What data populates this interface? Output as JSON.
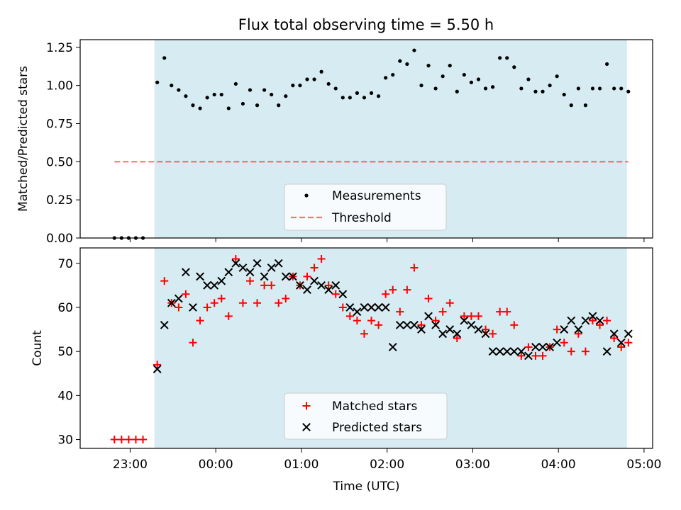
{
  "title": "Flux total observing time = 5.50 h",
  "colors": {
    "shade": "#add8e6",
    "threshold": "#ff0000",
    "matched": "#ff0000",
    "predicted": "#000000",
    "measurements": "#000000"
  },
  "chart_data": [
    {
      "type": "scatter",
      "panel": "top",
      "ylabel": "Matched/Predicted stars",
      "xlabel": "",
      "ylim": [
        0,
        1.3
      ],
      "yticks": [
        "0.00",
        "0.25",
        "0.50",
        "0.75",
        "1.00",
        "1.25"
      ],
      "legend_position": "lower center",
      "shaded_interval": [
        "23:17",
        "04:48"
      ],
      "series": [
        {
          "name": "Measurements",
          "x": [
            "22:49",
            "22:54",
            "22:59",
            "23:04",
            "23:09",
            "23:19",
            "23:24",
            "23:29",
            "23:34",
            "23:39",
            "23:44",
            "23:49",
            "23:54",
            "23:59",
            "00:04",
            "00:09",
            "00:14",
            "00:19",
            "00:24",
            "00:29",
            "00:34",
            "00:39",
            "00:44",
            "00:49",
            "00:54",
            "00:59",
            "01:04",
            "01:09",
            "01:14",
            "01:19",
            "01:24",
            "01:29",
            "01:34",
            "01:39",
            "01:44",
            "01:49",
            "01:54",
            "01:59",
            "02:04",
            "02:09",
            "02:14",
            "02:19",
            "02:24",
            "02:29",
            "02:34",
            "02:39",
            "02:44",
            "02:49",
            "02:54",
            "02:59",
            "03:04",
            "03:09",
            "03:14",
            "03:19",
            "03:24",
            "03:29",
            "03:34",
            "03:39",
            "03:44",
            "03:49",
            "03:54",
            "03:59",
            "04:04",
            "04:09",
            "04:14",
            "04:19",
            "04:24",
            "04:29",
            "04:34",
            "04:39",
            "04:44",
            "04:49"
          ],
          "y": [
            0,
            0,
            0,
            0,
            0,
            1.02,
            1.18,
            1.0,
            0.97,
            0.93,
            0.87,
            0.85,
            0.92,
            0.94,
            0.94,
            0.85,
            1.01,
            0.88,
            0.97,
            0.87,
            0.97,
            0.94,
            0.87,
            0.93,
            1.0,
            1.0,
            1.04,
            1.04,
            1.09,
            1.01,
            0.98,
            0.92,
            0.92,
            0.95,
            0.92,
            0.95,
            0.93,
            1.05,
            1.07,
            1.16,
            1.14,
            1.23,
            1.0,
            1.13,
            0.98,
            1.06,
            1.13,
            0.96,
            1.07,
            1.02,
            1.04,
            0.98,
            0.99,
            1.18,
            1.18,
            1.12,
            0.98,
            1.04,
            0.96,
            0.96,
            1.0,
            1.06,
            0.94,
            0.87,
            0.98,
            0.87,
            0.98,
            0.98,
            1.14,
            0.98,
            0.98,
            0.96
          ]
        },
        {
          "name": "Threshold",
          "x": [
            "22:49",
            "04:49"
          ],
          "y": [
            0.5,
            0.5
          ]
        }
      ]
    },
    {
      "type": "scatter",
      "panel": "bottom",
      "ylabel": "Count",
      "xlabel": "Time (UTC)",
      "ylim": [
        28,
        73.5
      ],
      "yticks": [
        "30",
        "40",
        "50",
        "60",
        "70"
      ],
      "xlim": [
        "22:25",
        "05:06"
      ],
      "xticks": [
        "23:00",
        "00:00",
        "01:00",
        "02:00",
        "03:00",
        "04:00",
        "05:00"
      ],
      "legend_position": "lower center",
      "shaded_interval": [
        "23:17",
        "04:48"
      ],
      "series": [
        {
          "name": "Matched stars",
          "x": [
            "22:49",
            "22:54",
            "22:59",
            "23:04",
            "23:09",
            "23:19",
            "23:24",
            "23:29",
            "23:34",
            "23:39",
            "23:44",
            "23:49",
            "23:54",
            "23:59",
            "00:04",
            "00:09",
            "00:14",
            "00:19",
            "00:24",
            "00:29",
            "00:34",
            "00:39",
            "00:44",
            "00:49",
            "00:54",
            "00:59",
            "01:04",
            "01:09",
            "01:14",
            "01:19",
            "01:24",
            "01:29",
            "01:34",
            "01:39",
            "01:44",
            "01:49",
            "01:54",
            "01:59",
            "02:04",
            "02:09",
            "02:14",
            "02:19",
            "02:24",
            "02:29",
            "02:34",
            "02:39",
            "02:44",
            "02:49",
            "02:54",
            "02:59",
            "03:04",
            "03:09",
            "03:14",
            "03:19",
            "03:24",
            "03:29",
            "03:34",
            "03:39",
            "03:44",
            "03:49",
            "03:54",
            "03:59",
            "04:04",
            "04:09",
            "04:14",
            "04:19",
            "04:24",
            "04:29",
            "04:34",
            "04:39",
            "04:44",
            "04:49"
          ],
          "y": [
            30,
            30,
            30,
            30,
            30,
            47,
            66,
            61,
            60,
            63,
            52,
            57,
            60,
            61,
            62,
            58,
            71,
            61,
            66,
            61,
            65,
            65,
            61,
            62,
            67,
            65,
            67,
            69,
            71,
            65,
            63,
            60,
            58,
            57,
            54,
            57,
            56,
            63,
            64,
            59,
            64,
            69,
            56,
            62,
            57,
            59,
            61,
            53,
            58,
            58,
            58,
            55,
            54,
            59,
            59,
            56,
            49,
            51,
            49,
            49,
            51,
            55,
            52,
            50,
            54,
            50,
            57,
            56,
            57,
            53,
            51,
            52
          ]
        },
        {
          "name": "Predicted stars",
          "x": [
            "23:19",
            "23:24",
            "23:29",
            "23:34",
            "23:39",
            "23:44",
            "23:49",
            "23:54",
            "23:59",
            "00:04",
            "00:09",
            "00:14",
            "00:19",
            "00:24",
            "00:29",
            "00:34",
            "00:39",
            "00:44",
            "00:49",
            "00:54",
            "00:59",
            "01:04",
            "01:09",
            "01:14",
            "01:19",
            "01:24",
            "01:29",
            "01:34",
            "01:39",
            "01:44",
            "01:49",
            "01:54",
            "01:59",
            "02:04",
            "02:09",
            "02:14",
            "02:19",
            "02:24",
            "02:29",
            "02:34",
            "02:39",
            "02:44",
            "02:49",
            "02:54",
            "02:59",
            "03:04",
            "03:09",
            "03:14",
            "03:19",
            "03:24",
            "03:29",
            "03:34",
            "03:39",
            "03:44",
            "03:49",
            "03:54",
            "03:59",
            "04:04",
            "04:09",
            "04:14",
            "04:19",
            "04:24",
            "04:29",
            "04:34",
            "04:39",
            "04:44",
            "04:49"
          ],
          "y": [
            46,
            56,
            61,
            62,
            68,
            60,
            67,
            65,
            65,
            66,
            68,
            70,
            69,
            68,
            70,
            67,
            69,
            70,
            67,
            67,
            65,
            64,
            66,
            65,
            64,
            65,
            63,
            60,
            59,
            60,
            60,
            60,
            60,
            51,
            56,
            56,
            56,
            55,
            58,
            56,
            54,
            55,
            54,
            57,
            56,
            55,
            54,
            50,
            50,
            50,
            50,
            50,
            49,
            51,
            51,
            51,
            52,
            55,
            57,
            55,
            57,
            58,
            57,
            50,
            54,
            52,
            54
          ]
        }
      ]
    }
  ]
}
